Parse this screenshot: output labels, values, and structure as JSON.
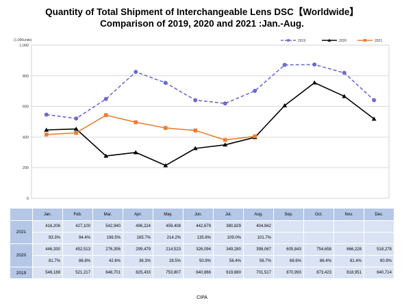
{
  "title_line1": "Quantity of Total Shipment of Interchangeable Lens DSC【Worldwide】",
  "title_line2": "Comparison of 2019, 2020 and 2021 :Jan.-Aug.",
  "source": "CIPA",
  "chart_data": {
    "type": "line",
    "categories": [
      "Jan.",
      "Feb.",
      "Mar.",
      "Apr.",
      "May.",
      "Jun.",
      "Jul.",
      "Aug.",
      "Sep.",
      "Oct.",
      "Nov.",
      "Dec."
    ],
    "unit_label": "(1,000units)",
    "ylim": [
      0,
      1000
    ],
    "yticks": [
      0,
      200,
      400,
      600,
      800,
      1000
    ],
    "ytick_labels": [
      "0",
      "200",
      "400",
      "600",
      "800",
      "1,000"
    ],
    "grid": true,
    "legend_position": "top-right",
    "series": [
      {
        "name": "2019",
        "color": "#6b6bcf",
        "style": "dashed",
        "marker": "circle",
        "values": [
          546.188,
          521.217,
          648.701,
          825.433,
          753.807,
          640.866,
          619.68,
          701.517,
          870.993,
          873.423,
          818.951,
          640.714
        ]
      },
      {
        "name": "2020",
        "color": "#000000",
        "style": "solid",
        "marker": "triangle",
        "values": [
          446.33,
          452.513,
          276.356,
          299.479,
          214.523,
          326.094,
          349.28,
          398.067,
          605.843,
          754.658,
          666.228,
          518.278
        ]
      },
      {
        "name": "2021",
        "color": "#ed7d31",
        "style": "solid",
        "marker": "square",
        "values": [
          416.206,
          427.1,
          542.94,
          496.224,
          459.408,
          442.679,
          380.829,
          404.942,
          null,
          null,
          null,
          null
        ]
      }
    ]
  },
  "table": {
    "months": [
      "Jan.",
      "Feb.",
      "Mar.",
      "Apr.",
      "May.",
      "Jun.",
      "Jul.",
      "Aug.",
      "Sep.",
      "Oct.",
      "Nov.",
      "Dec."
    ],
    "rows": [
      {
        "year": "2021",
        "values": [
          "416,206",
          "427,100",
          "542,940",
          "496,224",
          "459,408",
          "442,679",
          "380,829",
          "404,942",
          "",
          "",
          "",
          ""
        ],
        "pct": [
          "93.3%",
          "94.4%",
          "196.5%",
          "165.7%",
          "214.2%",
          "135.8%",
          "109.0%",
          "101.7%",
          "",
          "",
          "",
          ""
        ]
      },
      {
        "year": "2020",
        "values": [
          "446,330",
          "452,513",
          "276,356",
          "299,479",
          "214,523",
          "326,094",
          "349,280",
          "398,067",
          "605,843",
          "754,658",
          "666,228",
          "518,278"
        ],
        "pct": [
          "81.7%",
          "86.8%",
          "42.6%",
          "36.3%",
          "28.5%",
          "50.9%",
          "56.4%",
          "56.7%",
          "69.6%",
          "86.4%",
          "81.4%",
          "80.9%"
        ]
      },
      {
        "year": "2019",
        "values": [
          "546,188",
          "521,217",
          "648,701",
          "825,433",
          "753,807",
          "640,866",
          "619,680",
          "701,517",
          "870,993",
          "873,423",
          "818,951",
          "640,714"
        ]
      }
    ]
  }
}
